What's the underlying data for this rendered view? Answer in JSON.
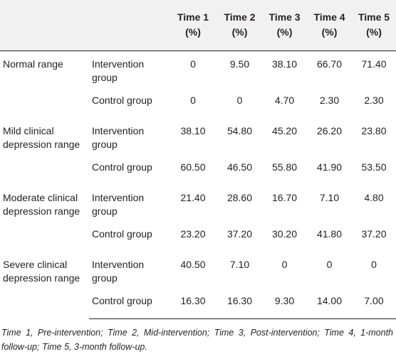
{
  "header": {
    "col1": "",
    "col2": "",
    "times": [
      {
        "line1": "Time 1",
        "line2": "(%)"
      },
      {
        "line1": "Time 2",
        "line2": "(%)"
      },
      {
        "line1": "Time 3",
        "line2": "(%)"
      },
      {
        "line1": "Time 4",
        "line2": "(%)"
      },
      {
        "line1": "Time 5",
        "line2": "(%)"
      }
    ]
  },
  "rows": [
    {
      "category": "Normal range",
      "intervention": {
        "label": "Intervention group",
        "values": [
          "0",
          "9.50",
          "38.10",
          "66.70",
          "71.40"
        ]
      },
      "control": {
        "label": "Control group",
        "values": [
          "0",
          "0",
          "4.70",
          "2.30",
          "2.30"
        ]
      }
    },
    {
      "category": "Mild clinical depression range",
      "intervention": {
        "label": "Intervention group",
        "values": [
          "38.10",
          "54.80",
          "45.20",
          "26.20",
          "23.80"
        ]
      },
      "control": {
        "label": "Control group",
        "values": [
          "60.50",
          "46.50",
          "55.80",
          "41.90",
          "53.50"
        ]
      }
    },
    {
      "category": "Moderate clinical depression range",
      "intervention": {
        "label": "Intervention group",
        "values": [
          "21.40",
          "28.60",
          "16.70",
          "7.10",
          "4.80"
        ]
      },
      "control": {
        "label": "Control group",
        "values": [
          "23.20",
          "37.20",
          "30.20",
          "41.80",
          "37.20"
        ]
      }
    },
    {
      "category": "Severe clinical depression range",
      "intervention": {
        "label": "Intervention group",
        "values": [
          "40.50",
          "7.10",
          "0",
          "0",
          "0"
        ]
      },
      "control": {
        "label": "Control group",
        "values": [
          "16.30",
          "16.30",
          "9.30",
          "14.00",
          "7.00"
        ]
      }
    }
  ],
  "footnote": "Time 1, Pre-intervention; Time 2, Mid-intervention; Time 3, Post-intervention; Time 4, 1-month follow-up; Time 5, 3-month follow-up."
}
